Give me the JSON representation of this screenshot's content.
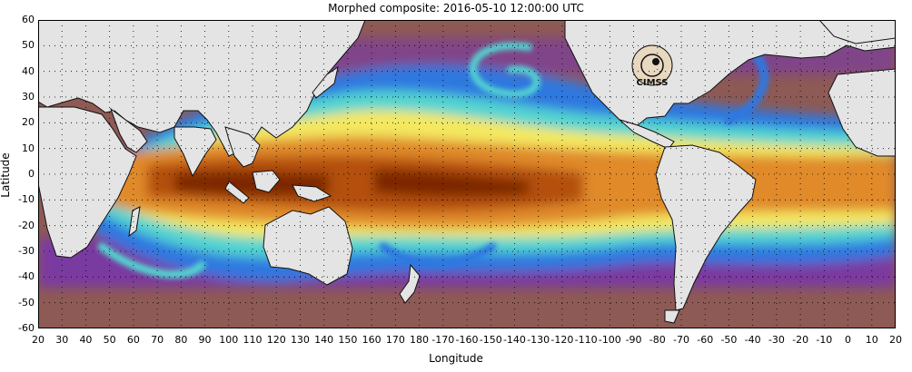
{
  "header": {
    "title": "Morphed composite: 2016-05-10 12:00:00 UTC"
  },
  "axes": {
    "ylabel": "Latitude",
    "xlabel": "Longitude",
    "lat_ticks": [
      "60",
      "50",
      "40",
      "30",
      "20",
      "10",
      "0",
      "-10",
      "-20",
      "-30",
      "-40",
      "-50",
      "-60"
    ],
    "lon_ticks": [
      "20",
      "30",
      "40",
      "50",
      "60",
      "70",
      "80",
      "90",
      "100",
      "110",
      "120",
      "130",
      "140",
      "150",
      "160",
      "170",
      "180",
      "-170",
      "-160",
      "-150",
      "-140",
      "-130",
      "-120",
      "-110",
      "-100",
      "-90",
      "-80",
      "-70",
      "-60",
      "-50",
      "-40",
      "-30",
      "-20",
      "-10",
      "0",
      "10",
      "20"
    ]
  },
  "logo": {
    "text": "CIMSS"
  },
  "map": {
    "extent": {
      "lon_range": [
        20,
        380
      ],
      "lat_range": [
        -60,
        60
      ]
    },
    "grid": "dotted every 10 degrees",
    "colors": {
      "land": "#e4e4e4",
      "coast": "#111111",
      "very_dry": "#8e5a55",
      "dry": "#7a3aa0",
      "low": "#3f2fb8",
      "mid_low": "#2f78e0",
      "mid": "#52d4d0",
      "mid_high": "#f4e860",
      "high": "#e08a2c",
      "very_high": "#b45010",
      "max": "#7c2604"
    }
  }
}
